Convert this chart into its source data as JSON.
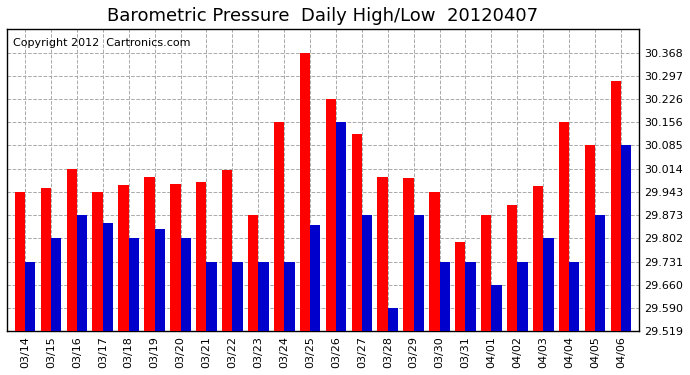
{
  "title": "Barometric Pressure  Daily High/Low  20120407",
  "copyright": "Copyright 2012  Cartronics.com",
  "dates": [
    "03/14",
    "03/15",
    "03/16",
    "03/17",
    "03/18",
    "03/19",
    "03/20",
    "03/21",
    "03/22",
    "03/23",
    "03/24",
    "03/25",
    "03/26",
    "03/27",
    "03/28",
    "03/29",
    "03/30",
    "03/31",
    "04/01",
    "04/02",
    "04/03",
    "04/04",
    "04/05",
    "04/06"
  ],
  "highs": [
    29.943,
    29.955,
    30.014,
    29.943,
    29.965,
    29.99,
    29.968,
    29.975,
    30.01,
    29.873,
    30.156,
    30.368,
    30.226,
    30.12,
    29.99,
    29.985,
    29.943,
    29.79,
    29.873,
    29.905,
    29.96,
    30.156,
    30.085,
    30.28
  ],
  "lows": [
    29.731,
    29.803,
    29.873,
    29.85,
    29.802,
    29.831,
    29.802,
    29.731,
    29.731,
    29.731,
    29.731,
    29.843,
    30.156,
    29.873,
    29.59,
    29.873,
    29.731,
    29.731,
    29.66,
    29.731,
    29.802,
    29.731,
    29.873,
    30.085
  ],
  "high_color": "#ff0000",
  "low_color": "#0000cc",
  "bg_color": "#ffffff",
  "grid_color": "#aaaaaa",
  "ylim_min": 29.519,
  "ylim_max": 30.439,
  "yticks": [
    29.519,
    29.59,
    29.66,
    29.731,
    29.802,
    29.873,
    29.943,
    30.014,
    30.085,
    30.156,
    30.226,
    30.297,
    30.368
  ],
  "title_fontsize": 13,
  "copyright_fontsize": 8
}
